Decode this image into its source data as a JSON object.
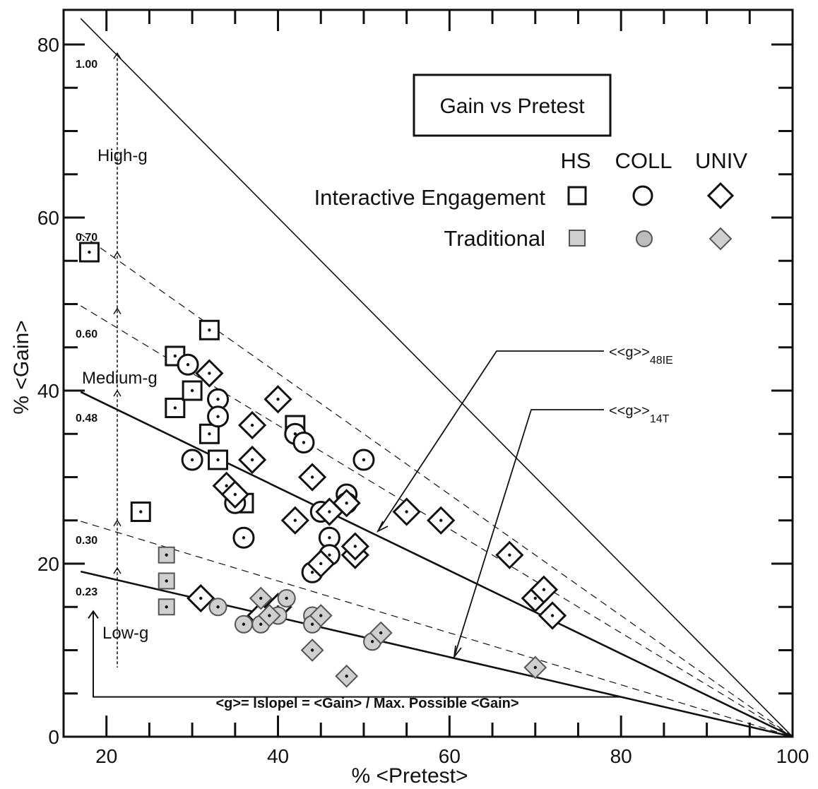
{
  "chart_data": {
    "type": "scatter",
    "xlabel": "% <Pretest>",
    "ylabel": "% <Gain>",
    "xlim": [
      15,
      100
    ],
    "ylim": [
      0,
      84
    ],
    "x_ticks": [
      20,
      40,
      60,
      80,
      100
    ],
    "y_ticks": [
      0,
      20,
      40,
      60,
      80
    ],
    "grid": false,
    "legend_placement": "top-right",
    "legend": {
      "title": "Gain vs Pretest",
      "columns": [
        "HS",
        "COLL",
        "UNIV"
      ],
      "rows": [
        "Interactive Engagement",
        "Traditional"
      ]
    },
    "reference_lines": [
      {
        "g": 1.0,
        "label": "1.00"
      },
      {
        "g": 0.7,
        "label": "0.70",
        "dashed": true
      },
      {
        "g": 0.6,
        "label": "0.60",
        "dashed": true
      },
      {
        "g": 0.48,
        "label": "0.48"
      },
      {
        "g": 0.3,
        "label": "0.30",
        "dashed": true
      },
      {
        "g": 0.23,
        "label": "0.23"
      }
    ],
    "region_labels": [
      "High-g",
      "Medium-g",
      "Low-g"
    ],
    "annotations": [
      {
        "label": "<<g>>",
        "subscript": "48IE"
      },
      {
        "label": "<<g>>",
        "subscript": "14T"
      }
    ],
    "formula": "<g>= lslopel = <Gain> / Max. Possible <Gain>",
    "series": [
      {
        "group": "HS",
        "type": "Interactive Engagement",
        "points": [
          [
            18,
            56
          ],
          [
            24,
            26
          ],
          [
            28,
            44
          ],
          [
            28,
            38
          ],
          [
            30,
            40
          ],
          [
            32,
            47
          ],
          [
            32,
            35
          ],
          [
            33,
            32
          ],
          [
            36,
            27
          ],
          [
            42,
            36
          ]
        ]
      },
      {
        "group": "COLL",
        "type": "Interactive Engagement",
        "points": [
          [
            29.5,
            43
          ],
          [
            30,
            32
          ],
          [
            33,
            39
          ],
          [
            33,
            37
          ],
          [
            35,
            27
          ],
          [
            36,
            23
          ],
          [
            42,
            35
          ],
          [
            43,
            34
          ],
          [
            44,
            19
          ],
          [
            45,
            26
          ],
          [
            46,
            23
          ],
          [
            46,
            21
          ],
          [
            48,
            28
          ],
          [
            48,
            27
          ],
          [
            50,
            32
          ]
        ]
      },
      {
        "group": "UNIV",
        "type": "Interactive Engagement",
        "points": [
          [
            31,
            16
          ],
          [
            32,
            42
          ],
          [
            34,
            29
          ],
          [
            35,
            28
          ],
          [
            37,
            32
          ],
          [
            37,
            36
          ],
          [
            38,
            14
          ],
          [
            40,
            39
          ],
          [
            40,
            15
          ],
          [
            42,
            25
          ],
          [
            44,
            30
          ],
          [
            45,
            20
          ],
          [
            46,
            26
          ],
          [
            48,
            27
          ],
          [
            49,
            21
          ],
          [
            49,
            22
          ],
          [
            55,
            26
          ],
          [
            59,
            25
          ],
          [
            67,
            21
          ],
          [
            70,
            16
          ],
          [
            71,
            17
          ],
          [
            72,
            14
          ]
        ]
      },
      {
        "group": "HS",
        "type": "Traditional",
        "points": [
          [
            27,
            21
          ],
          [
            27,
            18
          ],
          [
            27,
            15
          ]
        ]
      },
      {
        "group": "COLL",
        "type": "Traditional",
        "points": [
          [
            33,
            15
          ],
          [
            36,
            13
          ],
          [
            38,
            13
          ],
          [
            40,
            14
          ],
          [
            41,
            16
          ],
          [
            44,
            14
          ],
          [
            44,
            13
          ],
          [
            51,
            11
          ]
        ]
      },
      {
        "group": "UNIV",
        "type": "Traditional",
        "points": [
          [
            38,
            16
          ],
          [
            39,
            14
          ],
          [
            44,
            10
          ],
          [
            45,
            14
          ],
          [
            48,
            7
          ],
          [
            52,
            12
          ],
          [
            70,
            8
          ]
        ]
      }
    ]
  }
}
